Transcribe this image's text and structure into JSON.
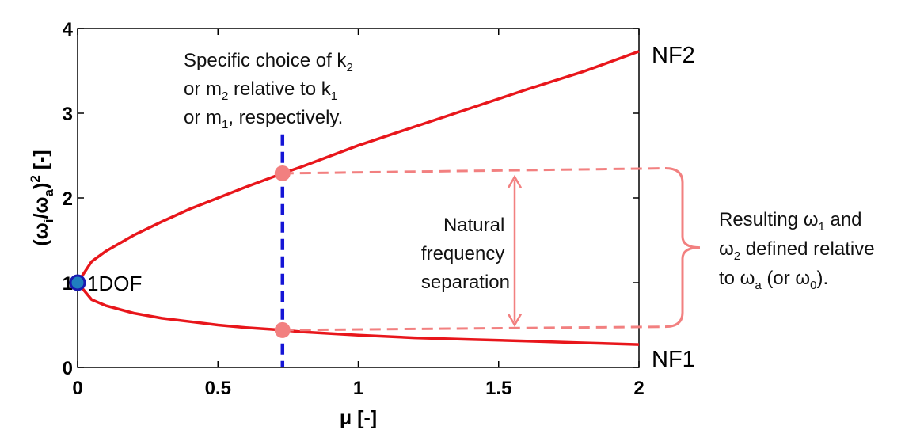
{
  "chart_data": {
    "type": "line",
    "xlabel": "μ [-]",
    "ylabel": "(ω_i/ω_a)^2 [-]",
    "xlim": [
      0,
      2
    ],
    "ylim": [
      0,
      4
    ],
    "x_ticks": [
      "0",
      "0.5",
      "1",
      "1.5",
      "2"
    ],
    "y_ticks": [
      "0",
      "1",
      "2",
      "3",
      "4"
    ],
    "grid": false,
    "series": [
      {
        "name": "NF2",
        "color": "#e8161b",
        "formula_note": "upper branch",
        "x": [
          0,
          0.05,
          0.1,
          0.2,
          0.3,
          0.4,
          0.5,
          0.6,
          0.73,
          0.8,
          1.0,
          1.2,
          1.4,
          1.6,
          1.8,
          2.0
        ],
        "y": [
          1.0,
          1.25,
          1.37,
          1.56,
          1.72,
          1.87,
          2.0,
          2.13,
          2.29,
          2.37,
          2.62,
          2.84,
          3.06,
          3.28,
          3.49,
          3.73
        ]
      },
      {
        "name": "NF1",
        "color": "#e8161b",
        "formula_note": "lower branch",
        "x": [
          0,
          0.05,
          0.1,
          0.2,
          0.3,
          0.4,
          0.5,
          0.6,
          0.73,
          0.8,
          1.0,
          1.2,
          1.4,
          1.6,
          1.8,
          2.0
        ],
        "y": [
          1.0,
          0.8,
          0.73,
          0.64,
          0.58,
          0.54,
          0.5,
          0.47,
          0.44,
          0.42,
          0.38,
          0.35,
          0.33,
          0.31,
          0.29,
          0.27
        ]
      }
    ],
    "points": [
      {
        "label": "1DOF",
        "x": 0,
        "y": 1.0,
        "color": "#1f7fbf"
      },
      {
        "label": "",
        "x": 0.73,
        "y": 2.29,
        "color": "#f28080"
      },
      {
        "label": "",
        "x": 0.73,
        "y": 0.44,
        "color": "#f28080"
      }
    ],
    "vline": {
      "x": 0.73,
      "color": "#1515d6"
    },
    "annotations": {
      "choice": [
        "Specific choice of k",
        "2",
        "or m",
        "2",
        " relative to k",
        "1",
        "or m",
        "1",
        ", respectively."
      ],
      "separation": [
        "Natural",
        "frequency",
        "separation"
      ],
      "result": [
        "Resulting ω",
        "1",
        " and",
        "ω",
        "2",
        " defined relative",
        "to ω",
        "a",
        " (or ω",
        "0",
        ")."
      ]
    }
  }
}
